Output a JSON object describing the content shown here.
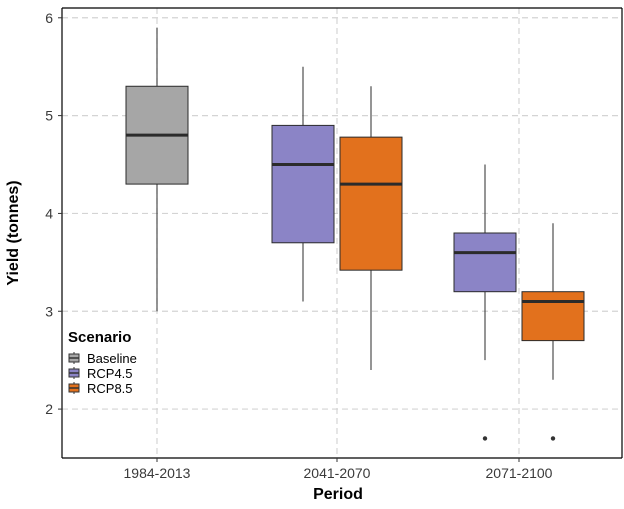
{
  "chart_data": {
    "type": "box",
    "xlabel": "Period",
    "ylabel": "Yield (tonnes)",
    "categories": [
      "1984-2013",
      "2041-2070",
      "2071-2100"
    ],
    "ylim": [
      1.5,
      6.1
    ],
    "yticks": [
      2,
      3,
      4,
      5,
      6
    ],
    "grid": true,
    "legend": {
      "title": "Scenario",
      "position": "bottom-left",
      "items": [
        {
          "name": "Baseline",
          "color": "#a6a6a6"
        },
        {
          "name": "RCP4.5",
          "color": "#8b84c6"
        },
        {
          "name": "RCP8.5",
          "color": "#e2711d"
        }
      ]
    },
    "series": [
      {
        "name": "Baseline",
        "color": "#a6a6a6",
        "boxes": [
          {
            "category": "1984-2013",
            "min": 3.0,
            "q1": 4.3,
            "median": 4.8,
            "q3": 5.3,
            "max": 5.9,
            "outliers": []
          }
        ]
      },
      {
        "name": "RCP4.5",
        "color": "#8b84c6",
        "boxes": [
          {
            "category": "2041-2070",
            "min": 3.1,
            "q1": 3.7,
            "median": 4.5,
            "q3": 4.9,
            "max": 5.5,
            "outliers": []
          },
          {
            "category": "2071-2100",
            "min": 2.5,
            "q1": 3.2,
            "median": 3.6,
            "q3": 3.8,
            "max": 4.5,
            "outliers": [
              1.7
            ]
          }
        ]
      },
      {
        "name": "RCP8.5",
        "color": "#e2711d",
        "boxes": [
          {
            "category": "2041-2070",
            "min": 2.4,
            "q1": 3.42,
            "median": 4.3,
            "q3": 4.78,
            "max": 5.3,
            "outliers": []
          },
          {
            "category": "2071-2100",
            "min": 2.3,
            "q1": 2.7,
            "median": 3.1,
            "q3": 3.2,
            "max": 3.9,
            "outliers": [
              1.7
            ]
          }
        ]
      }
    ]
  }
}
